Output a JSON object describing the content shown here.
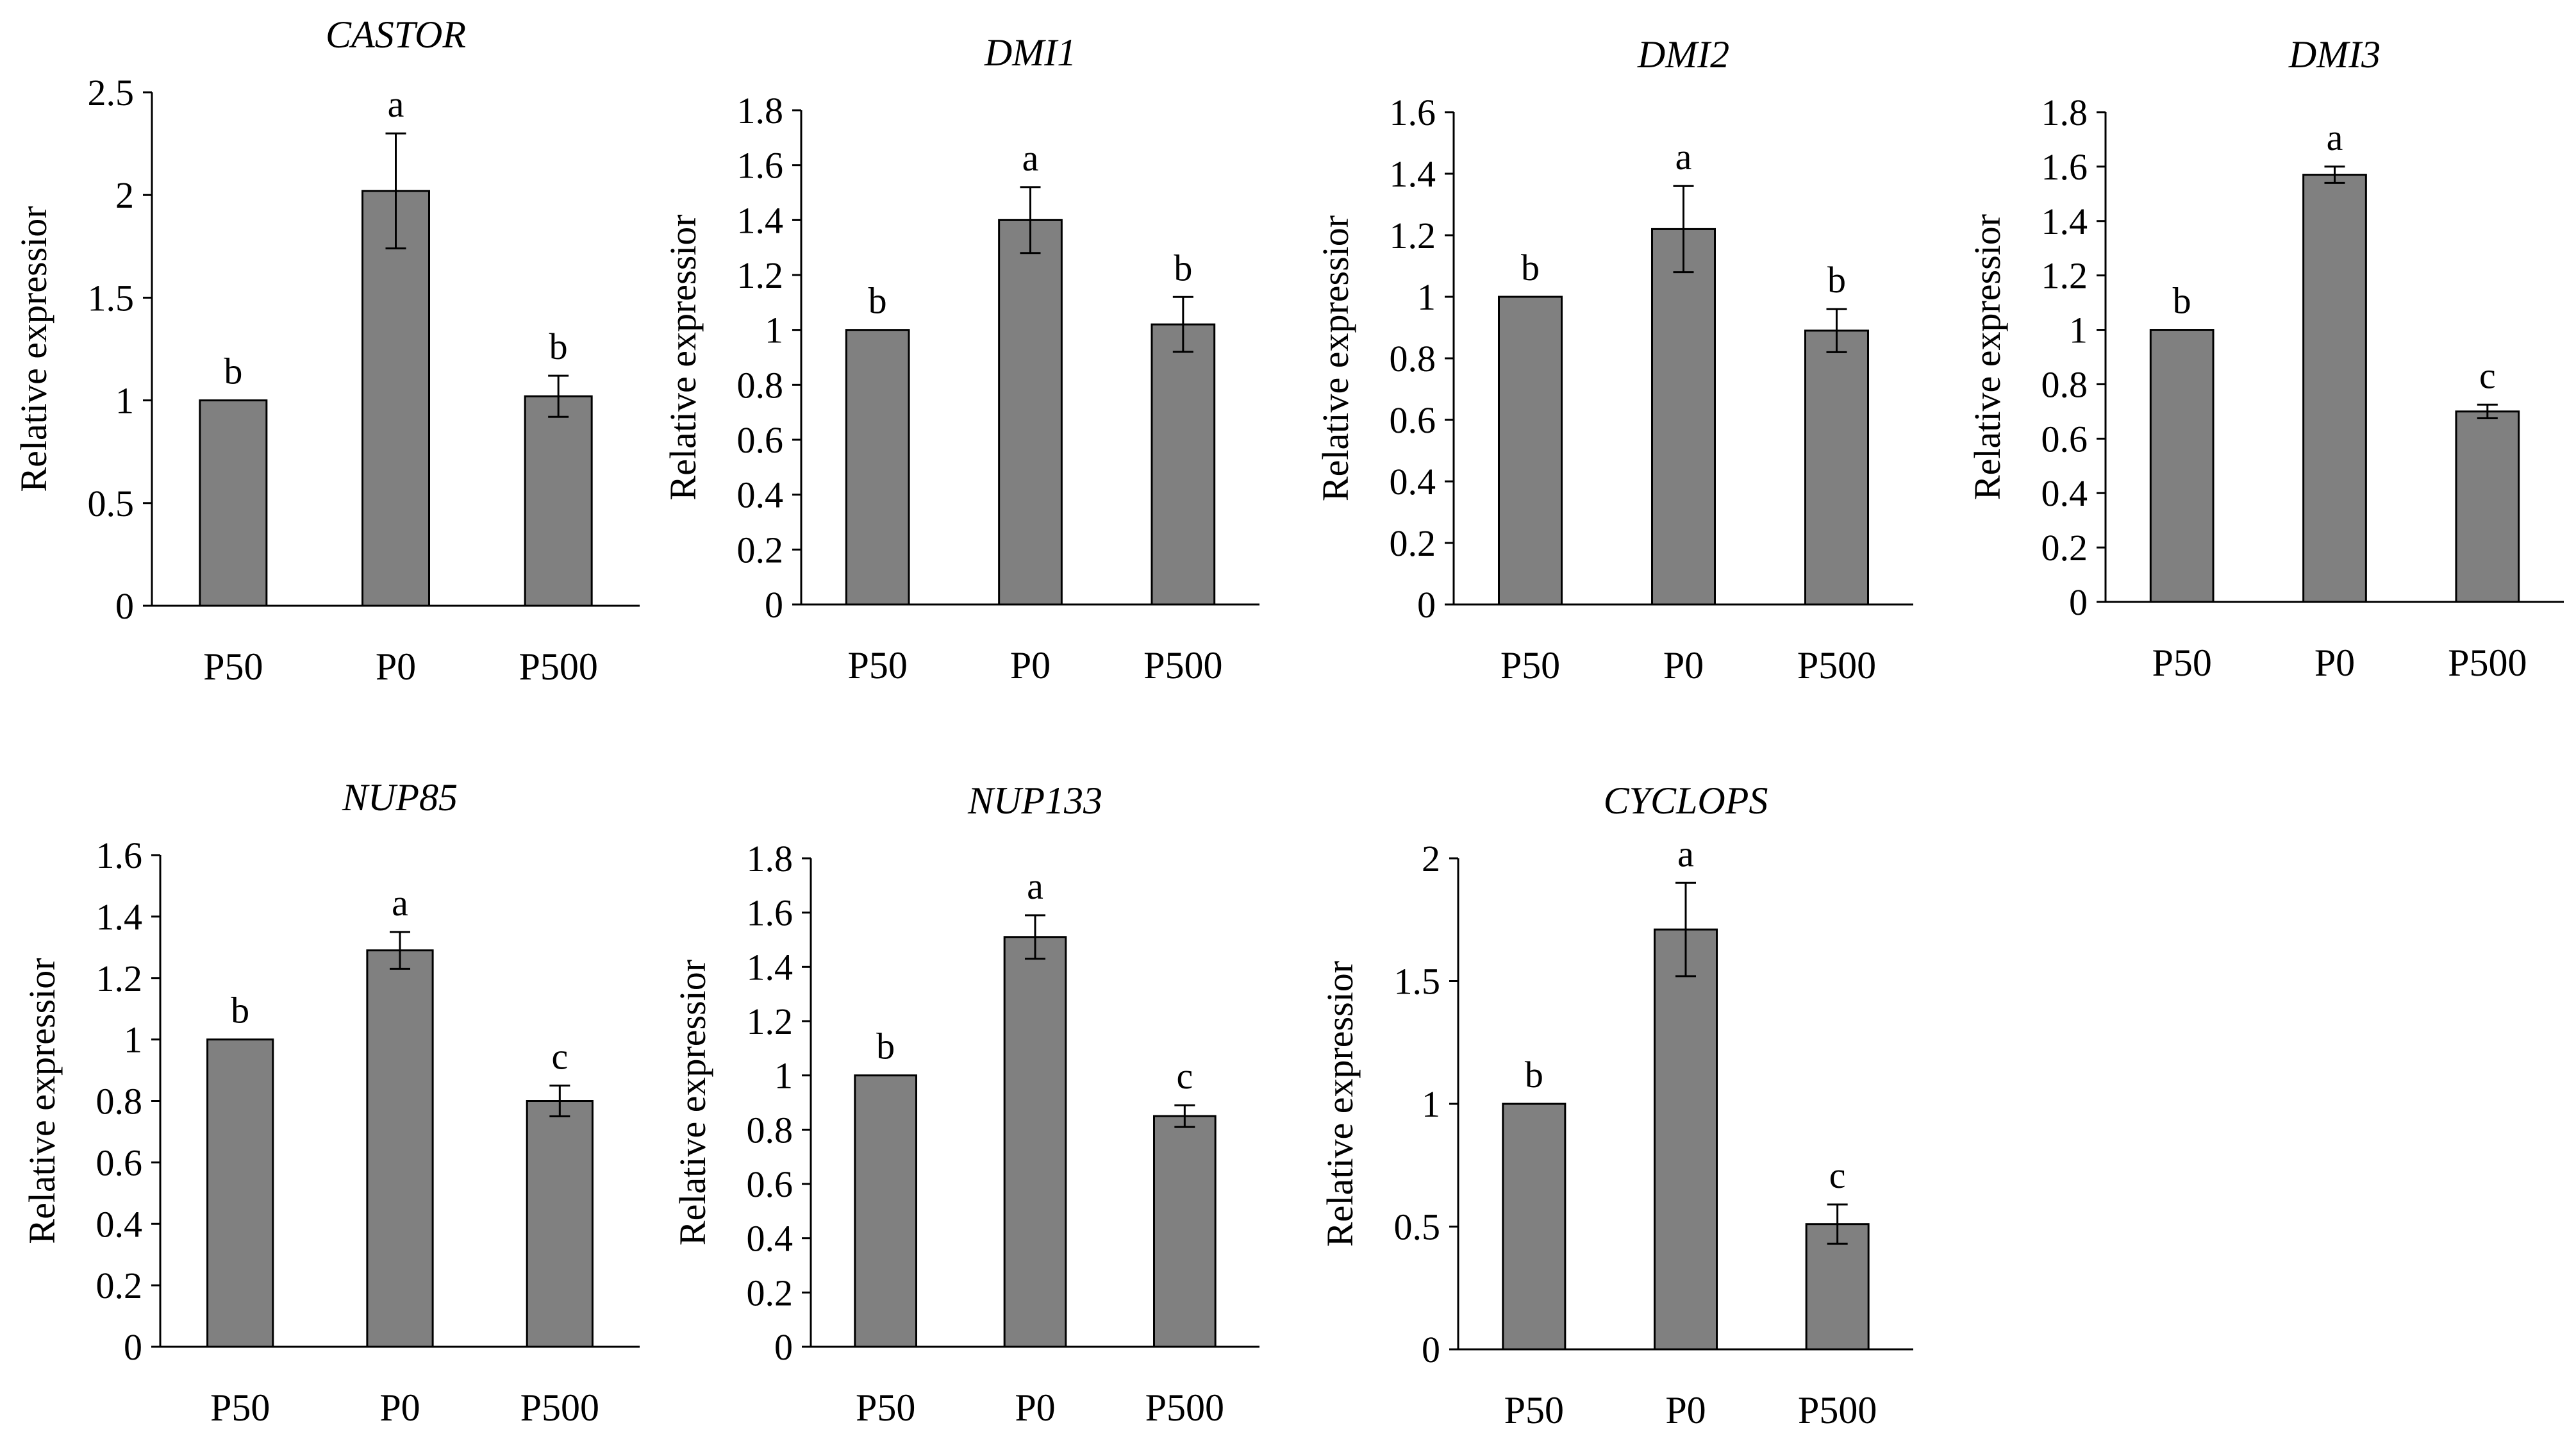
{
  "colors": {
    "bar": "#808080",
    "bar_edge": "#000000",
    "axis": "#000000",
    "text": "#000000"
  },
  "ylabel": "Relative expressior",
  "chart_data": [
    {
      "type": "bar",
      "title": "CASTOR",
      "ylabel": "Relative expressior",
      "categories": [
        "P50",
        "P0",
        "P500"
      ],
      "values": [
        1.0,
        2.02,
        1.02
      ],
      "errors": [
        0,
        0.28,
        0.1
      ],
      "letters": [
        "b",
        "a",
        "b"
      ],
      "ylim": [
        0,
        2.5
      ],
      "yticks": [
        0,
        0.5,
        1,
        1.5,
        2,
        2.5
      ],
      "ytick_labels": [
        "0",
        "0.5",
        "1",
        "1.5",
        "2",
        "2.5"
      ]
    },
    {
      "type": "bar",
      "title": "DMI1",
      "ylabel": "Relative expressior",
      "categories": [
        "P50",
        "P0",
        "P500"
      ],
      "values": [
        1.0,
        1.4,
        1.02
      ],
      "errors": [
        0,
        0.12,
        0.1
      ],
      "letters": [
        "b",
        "a",
        "b"
      ],
      "ylim": [
        0,
        1.8
      ],
      "yticks": [
        0,
        0.2,
        0.4,
        0.6,
        0.8,
        1,
        1.2,
        1.4,
        1.6,
        1.8
      ],
      "ytick_labels": [
        "0",
        "0.2",
        "0.4",
        "0.6",
        "0.8",
        "1",
        "1.2",
        "1.4",
        "1.6",
        "1.8"
      ]
    },
    {
      "type": "bar",
      "title": "DMI2",
      "ylabel": "Relative expressior",
      "categories": [
        "P50",
        "P0",
        "P500"
      ],
      "values": [
        1.0,
        1.22,
        0.89
      ],
      "errors": [
        0,
        0.14,
        0.07
      ],
      "letters": [
        "b",
        "a",
        "b"
      ],
      "ylim": [
        0,
        1.6
      ],
      "yticks": [
        0,
        0.2,
        0.4,
        0.6,
        0.8,
        1,
        1.2,
        1.4,
        1.6
      ],
      "ytick_labels": [
        "0",
        "0.2",
        "0.4",
        "0.6",
        "0.8",
        "1",
        "1.2",
        "1.4",
        "1.6"
      ]
    },
    {
      "type": "bar",
      "title": "DMI3",
      "ylabel": "Relative expressior",
      "categories": [
        "P50",
        "P0",
        "P500"
      ],
      "values": [
        1.0,
        1.57,
        0.7
      ],
      "errors": [
        0,
        0.03,
        0.025
      ],
      "letters": [
        "b",
        "a",
        "c"
      ],
      "ylim": [
        0,
        1.8
      ],
      "yticks": [
        0,
        0.2,
        0.4,
        0.6,
        0.8,
        1,
        1.2,
        1.4,
        1.6,
        1.8
      ],
      "ytick_labels": [
        "0",
        "0.2",
        "0.4",
        "0.6",
        "0.8",
        "1",
        "1.2",
        "1.4",
        "1.6",
        "1.8"
      ]
    },
    {
      "type": "bar",
      "title": "NUP85",
      "ylabel": "Relative expressior",
      "categories": [
        "P50",
        "P0",
        "P500"
      ],
      "values": [
        1.0,
        1.29,
        0.8
      ],
      "errors": [
        0,
        0.06,
        0.05
      ],
      "letters": [
        "b",
        "a",
        "c"
      ],
      "ylim": [
        0,
        1.6
      ],
      "yticks": [
        0,
        0.2,
        0.4,
        0.6,
        0.8,
        1,
        1.2,
        1.4,
        1.6
      ],
      "ytick_labels": [
        "0",
        "0.2",
        "0.4",
        "0.6",
        "0.8",
        "1",
        "1.2",
        "1.4",
        "1.6"
      ]
    },
    {
      "type": "bar",
      "title": "NUP133",
      "ylabel": "Relative expressior",
      "categories": [
        "P50",
        "P0",
        "P500"
      ],
      "values": [
        1.0,
        1.51,
        0.85
      ],
      "errors": [
        0,
        0.08,
        0.04
      ],
      "letters": [
        "b",
        "a",
        "c"
      ],
      "ylim": [
        0,
        1.8
      ],
      "yticks": [
        0,
        0.2,
        0.4,
        0.6,
        0.8,
        1,
        1.2,
        1.4,
        1.6,
        1.8
      ],
      "ytick_labels": [
        "0",
        "0.2",
        "0.4",
        "0.6",
        "0.8",
        "1",
        "1.2",
        "1.4",
        "1.6",
        "1.8"
      ]
    },
    {
      "type": "bar",
      "title": "CYCLOPS",
      "ylabel": "Relative expressior",
      "categories": [
        "P50",
        "P0",
        "P500"
      ],
      "values": [
        1.0,
        1.71,
        0.51
      ],
      "errors": [
        0,
        0.19,
        0.08
      ],
      "letters": [
        "b",
        "a",
        "c"
      ],
      "ylim": [
        0,
        2
      ],
      "yticks": [
        0,
        0.5,
        1,
        1.5,
        2
      ],
      "ytick_labels": [
        "0",
        "0.5",
        "1",
        "1.5",
        "2"
      ]
    }
  ]
}
